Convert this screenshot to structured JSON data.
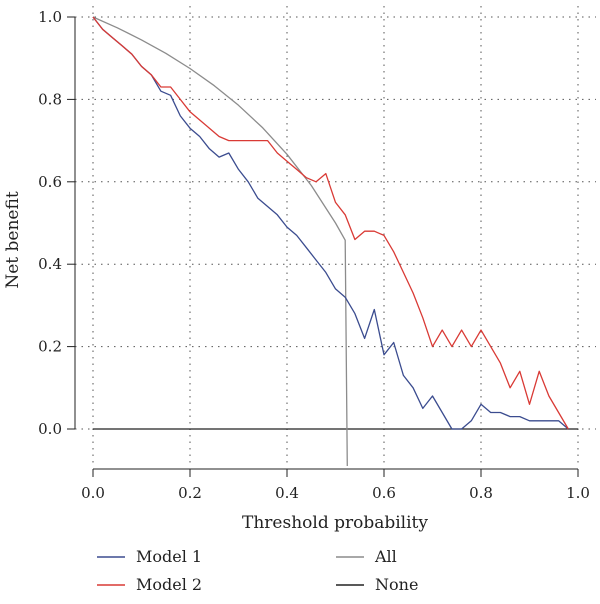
{
  "chart_data": {
    "type": "line",
    "xlabel": "Threshold probability",
    "ylabel": "Net benefit",
    "xlim": [
      0.0,
      1.0
    ],
    "ylim": [
      -0.1,
      1.0
    ],
    "xticks": [
      "0.0",
      "0.2",
      "0.4",
      "0.6",
      "0.8",
      "1.0"
    ],
    "yticks": [
      "0.0",
      "0.2",
      "0.4",
      "0.6",
      "0.8",
      "1.0"
    ],
    "grid": true,
    "legend_position": "bottom",
    "series": [
      {
        "name": "Model 1",
        "color": "#3b4c8f",
        "x": [
          0.0,
          0.02,
          0.04,
          0.06,
          0.08,
          0.1,
          0.12,
          0.14,
          0.16,
          0.18,
          0.2,
          0.22,
          0.24,
          0.26,
          0.28,
          0.3,
          0.32,
          0.34,
          0.36,
          0.38,
          0.4,
          0.42,
          0.44,
          0.46,
          0.48,
          0.5,
          0.52,
          0.54,
          0.56,
          0.58,
          0.6,
          0.62,
          0.64,
          0.66,
          0.68,
          0.7,
          0.72,
          0.74,
          0.76,
          0.78,
          0.8,
          0.82,
          0.84,
          0.86,
          0.88,
          0.9,
          0.92,
          0.94,
          0.96,
          0.98
        ],
        "y": [
          1.0,
          0.97,
          0.95,
          0.93,
          0.91,
          0.88,
          0.86,
          0.82,
          0.81,
          0.76,
          0.73,
          0.71,
          0.68,
          0.66,
          0.67,
          0.63,
          0.6,
          0.56,
          0.54,
          0.52,
          0.49,
          0.47,
          0.44,
          0.41,
          0.38,
          0.34,
          0.32,
          0.28,
          0.22,
          0.29,
          0.18,
          0.21,
          0.13,
          0.1,
          0.05,
          0.08,
          0.04,
          0.0,
          0.0,
          0.02,
          0.06,
          0.04,
          0.04,
          0.03,
          0.03,
          0.02,
          0.02,
          0.02,
          0.02,
          0.0
        ]
      },
      {
        "name": "Model 2",
        "color": "#d93a35",
        "x": [
          0.0,
          0.02,
          0.04,
          0.06,
          0.08,
          0.1,
          0.12,
          0.14,
          0.16,
          0.18,
          0.2,
          0.22,
          0.24,
          0.26,
          0.28,
          0.3,
          0.32,
          0.34,
          0.36,
          0.38,
          0.4,
          0.42,
          0.44,
          0.46,
          0.48,
          0.5,
          0.52,
          0.54,
          0.56,
          0.58,
          0.6,
          0.62,
          0.64,
          0.66,
          0.68,
          0.7,
          0.72,
          0.74,
          0.76,
          0.78,
          0.8,
          0.82,
          0.84,
          0.86,
          0.88,
          0.9,
          0.92,
          0.94,
          0.96,
          0.98
        ],
        "y": [
          1.0,
          0.97,
          0.95,
          0.93,
          0.91,
          0.88,
          0.86,
          0.83,
          0.83,
          0.8,
          0.77,
          0.75,
          0.73,
          0.71,
          0.7,
          0.7,
          0.7,
          0.7,
          0.7,
          0.67,
          0.65,
          0.63,
          0.61,
          0.6,
          0.62,
          0.55,
          0.52,
          0.46,
          0.48,
          0.48,
          0.47,
          0.43,
          0.38,
          0.33,
          0.27,
          0.2,
          0.24,
          0.2,
          0.24,
          0.2,
          0.24,
          0.2,
          0.16,
          0.1,
          0.14,
          0.06,
          0.14,
          0.08,
          0.04,
          0.0
        ]
      },
      {
        "name": "All",
        "color": "#8c8c8c",
        "x": [
          0.0,
          0.05,
          0.1,
          0.15,
          0.2,
          0.25,
          0.3,
          0.35,
          0.4,
          0.45,
          0.5,
          0.52
        ],
        "y": [
          1.0,
          0.9737,
          0.9444,
          0.9118,
          0.875,
          0.8333,
          0.7857,
          0.7308,
          0.6667,
          0.5909,
          0.5,
          0.4583
        ]
      },
      {
        "name": "None",
        "color": "#222222",
        "x": [
          0.0,
          1.0
        ],
        "y": [
          0.0,
          0.0
        ]
      }
    ]
  }
}
